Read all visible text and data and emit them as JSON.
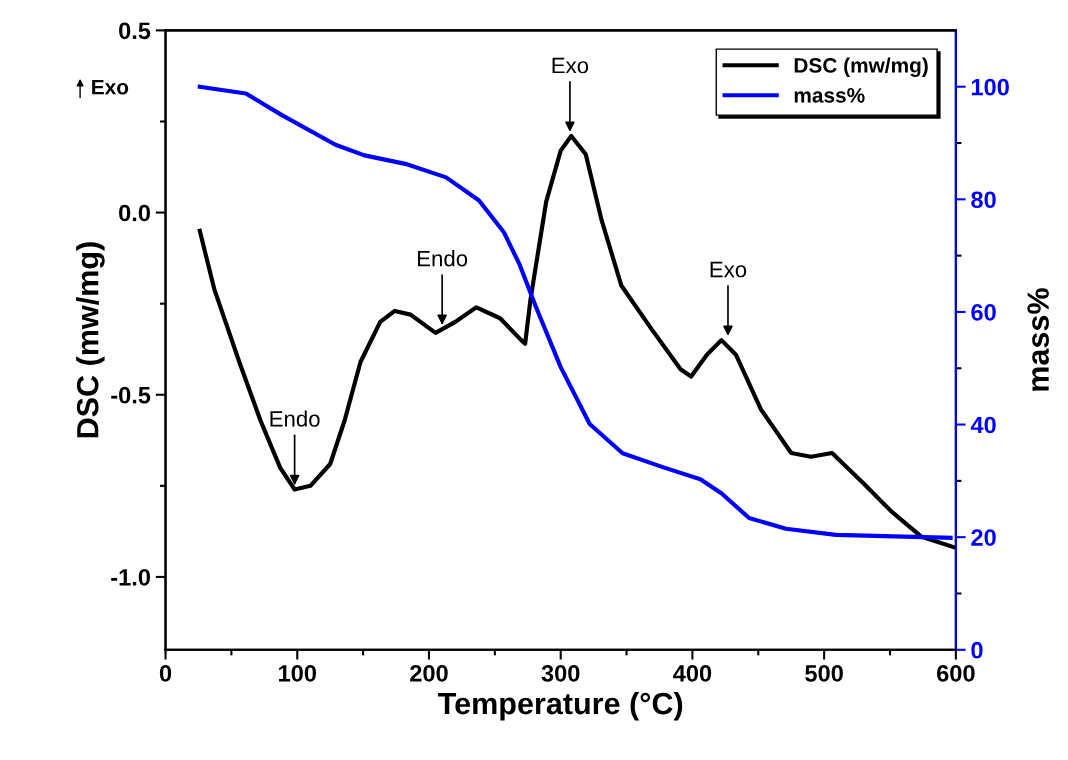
{
  "chart_data": {
    "type": "line",
    "xlabel": "Temperature (°C)",
    "ylabel": "DSC (mw/mg)",
    "y2label": "mass%",
    "xlim": [
      0,
      600
    ],
    "xticks": [
      0,
      100,
      200,
      300,
      400,
      500,
      600
    ],
    "ylim": [
      -1.2,
      0.5
    ],
    "yticks": [
      {
        "value": -1.0,
        "label": "-1.0"
      },
      {
        "value": -0.5,
        "label": "-0.5"
      },
      {
        "value": 0,
        "label": "0.0"
      },
      {
        "value": 0.5,
        "label": "0.5"
      }
    ],
    "y2lim": [
      0,
      110
    ],
    "y2ticks": [
      0,
      20,
      40,
      60,
      80,
      100
    ],
    "legend": "top right",
    "grid": false,
    "series": [
      {
        "name": "DSC (mw/mg)",
        "color": "#000000",
        "x": [
          26,
          37,
          56,
          72,
          87,
          98,
          110,
          125,
          136,
          148,
          163,
          174,
          186,
          205,
          220,
          236,
          254,
          270,
          273,
          277,
          289,
          300,
          308,
          319,
          331,
          346,
          369,
          391,
          399,
          411,
          422,
          433,
          452,
          475,
          490,
          506,
          529,
          551,
          574,
          600
        ],
        "values": [
          -0.05,
          -0.21,
          -0.41,
          -0.57,
          -0.7,
          -0.76,
          -0.75,
          -0.69,
          -0.57,
          -0.41,
          -0.3,
          -0.27,
          -0.28,
          -0.33,
          -0.3,
          -0.26,
          -0.29,
          -0.35,
          -0.36,
          -0.24,
          0.03,
          0.17,
          0.21,
          0.16,
          -0.02,
          -0.2,
          -0.32,
          -0.43,
          -0.45,
          -0.39,
          -0.35,
          -0.39,
          -0.54,
          -0.66,
          -0.67,
          -0.66,
          -0.74,
          -0.82,
          -0.89,
          -0.92
        ]
      },
      {
        "name": "mass%",
        "color": "#0000ff",
        "axis": "y2",
        "x": [
          26,
          61,
          88,
          129,
          151,
          182,
          213,
          238,
          257,
          269,
          281,
          300,
          322,
          347,
          378,
          406,
          422,
          443,
          471,
          509,
          596
        ],
        "values": [
          100,
          98.8,
          95.0,
          89.7,
          87.8,
          86.3,
          83.9,
          79.8,
          74.1,
          68.3,
          61.0,
          50.2,
          40.1,
          34.9,
          32.4,
          30.3,
          27.8,
          23.4,
          21.5,
          20.4,
          19.9
        ]
      }
    ],
    "annotations": [
      "Exo",
      {
        "text": "Endo",
        "x": 98,
        "y": -0.76
      },
      {
        "text": "Endo",
        "x": 210,
        "y": -0.32
      },
      {
        "text": "Exo",
        "x": 307,
        "y": 0.21
      },
      {
        "text": "Exo",
        "x": 427,
        "y": -0.35
      }
    ]
  }
}
